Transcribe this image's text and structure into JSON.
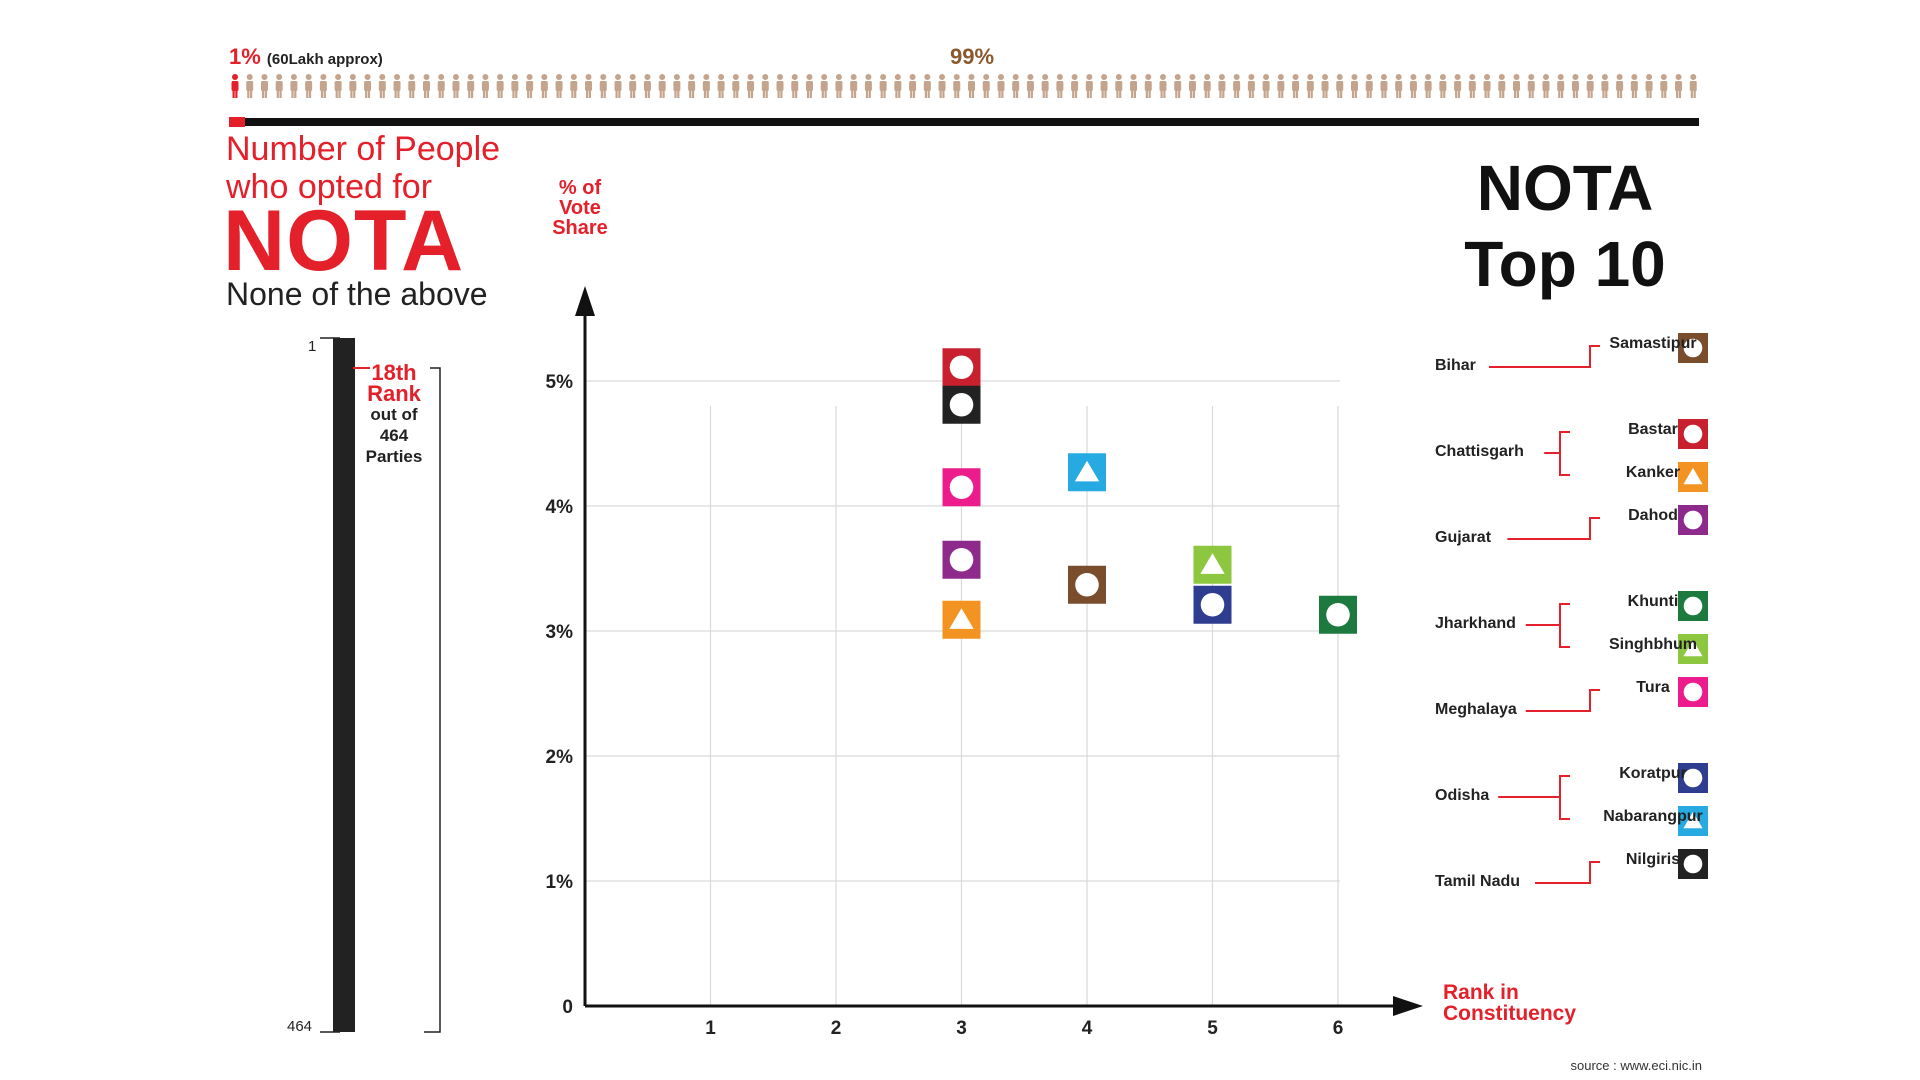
{
  "header": {
    "pct_small": "1%",
    "pct_small_note": "(60Lakh approx)",
    "pct_large": "99%"
  },
  "title": {
    "line1": "Number of People",
    "line2": "who opted for",
    "nota": "NOTA",
    "subtitle": "None of the above"
  },
  "rank_panel": {
    "top_label": "1",
    "bottom_label": "464",
    "rank": "18th",
    "rank_word": "Rank",
    "out_of": "out of",
    "total": "464",
    "parties": "Parties"
  },
  "top10": {
    "line1": "NOTA",
    "line2": "Top 10"
  },
  "source": "source : www.eci.nic.in",
  "colors": {
    "accent": "#e4202a",
    "axis": "#111111",
    "grid": "#d9d9d9",
    "people_icon": "#c4a48c"
  },
  "chart_data": {
    "type": "scatter",
    "ylabel": "% of Vote Share",
    "xlabel": "Rank in Constituency",
    "x_ticks": [
      "1",
      "2",
      "3",
      "4",
      "5",
      "6"
    ],
    "y_ticks": [
      "0",
      "1%",
      "2%",
      "3%",
      "4%",
      "5%"
    ],
    "xlim": [
      0,
      6
    ],
    "ylim": [
      0,
      5
    ],
    "grid": true,
    "legend_position": "right",
    "points": [
      {
        "constituency": "Samastipur",
        "state": "Bihar",
        "x": 4,
        "y": 3.37,
        "color": "#7a4e2d",
        "marker": "circle"
      },
      {
        "constituency": "Bastar",
        "state": "Chattisgarh",
        "x": 3,
        "y": 5.11,
        "color": "#c8202e",
        "marker": "circle"
      },
      {
        "constituency": "Kanker",
        "state": "Chattisgarh",
        "x": 3,
        "y": 3.09,
        "color": "#f39321",
        "marker": "triangle"
      },
      {
        "constituency": "Dahod",
        "state": "Gujarat",
        "x": 3,
        "y": 3.57,
        "color": "#8e2a8c",
        "marker": "circle"
      },
      {
        "constituency": "Khunti",
        "state": "Jharkhand",
        "x": 6,
        "y": 3.13,
        "color": "#1c7a3e",
        "marker": "circle"
      },
      {
        "constituency": "Singhbhum",
        "state": "Jharkhand",
        "x": 5,
        "y": 3.53,
        "color": "#8dc63f",
        "marker": "triangle"
      },
      {
        "constituency": "Tura",
        "state": "Meghalaya",
        "x": 3,
        "y": 4.15,
        "color": "#ec1c8c",
        "marker": "circle"
      },
      {
        "constituency": "Koratpur",
        "state": "Odisha",
        "x": 5,
        "y": 3.21,
        "color": "#2e3d8f",
        "marker": "circle"
      },
      {
        "constituency": "Nabarangpur",
        "state": "Odisha",
        "x": 4,
        "y": 4.27,
        "color": "#27aae1",
        "marker": "triangle"
      },
      {
        "constituency": "Nilgiris",
        "state": "Tamil Nadu",
        "x": 3,
        "y": 4.81,
        "color": "#222222",
        "marker": "circle"
      }
    ]
  },
  "legend": [
    {
      "state": "Bihar",
      "items": [
        {
          "name": "Samastipur",
          "color": "#7a4e2d",
          "marker": "circle"
        }
      ]
    },
    {
      "state": "Chattisgarh",
      "items": [
        {
          "name": "Bastar",
          "color": "#c8202e",
          "marker": "circle"
        },
        {
          "name": "Kanker",
          "color": "#f39321",
          "marker": "triangle"
        }
      ]
    },
    {
      "state": "Gujarat",
      "items": [
        {
          "name": "Dahod",
          "color": "#8e2a8c",
          "marker": "circle"
        }
      ]
    },
    {
      "state": "Jharkhand",
      "items": [
        {
          "name": "Khunti",
          "color": "#1c7a3e",
          "marker": "circle"
        },
        {
          "name": "Singhbhum",
          "color": "#8dc63f",
          "marker": "triangle"
        }
      ]
    },
    {
      "state": "Meghalaya",
      "items": [
        {
          "name": "Tura",
          "color": "#ec1c8c",
          "marker": "circle"
        }
      ]
    },
    {
      "state": "Odisha",
      "items": [
        {
          "name": "Koratpur",
          "color": "#2e3d8f",
          "marker": "circle"
        },
        {
          "name": "Nabarangpur",
          "color": "#27aae1",
          "marker": "triangle"
        }
      ]
    },
    {
      "state": "Tamil Nadu",
      "items": [
        {
          "name": "Nilgiris",
          "color": "#222222",
          "marker": "circle"
        }
      ]
    }
  ]
}
